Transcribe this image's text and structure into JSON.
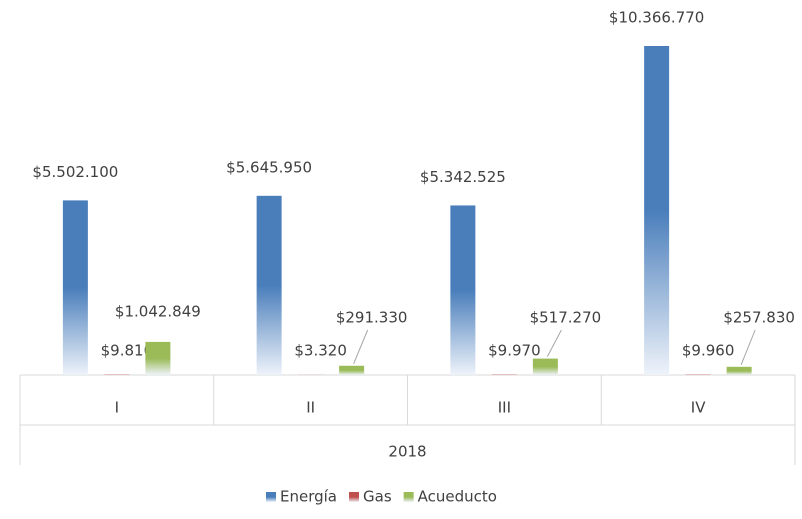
{
  "chart_data": {
    "type": "bar",
    "categories": [
      "I",
      "II",
      "III",
      "IV"
    ],
    "group_label": "2018",
    "series": [
      {
        "name": "Energía",
        "color": "#4a7ebb",
        "values": [
          5502100,
          5645950,
          5342525,
          10366770
        ],
        "value_labels": [
          "$5.502.100",
          "$5.645.950",
          "$5.342.525",
          "$10.366.770"
        ]
      },
      {
        "name": "Gas",
        "color": "#c0504d",
        "values": [
          9810,
          3320,
          9970,
          9960
        ],
        "value_labels": [
          "$9.810",
          "$3.320",
          "$9.970",
          "$9.960"
        ]
      },
      {
        "name": "Acueducto",
        "color": "#9bbb59",
        "values": [
          1042849,
          291330,
          517270,
          257830
        ],
        "value_labels": [
          "$1.042.849",
          "$291.330",
          "$517.270",
          "$257.830"
        ]
      }
    ],
    "legend": "bottom"
  }
}
